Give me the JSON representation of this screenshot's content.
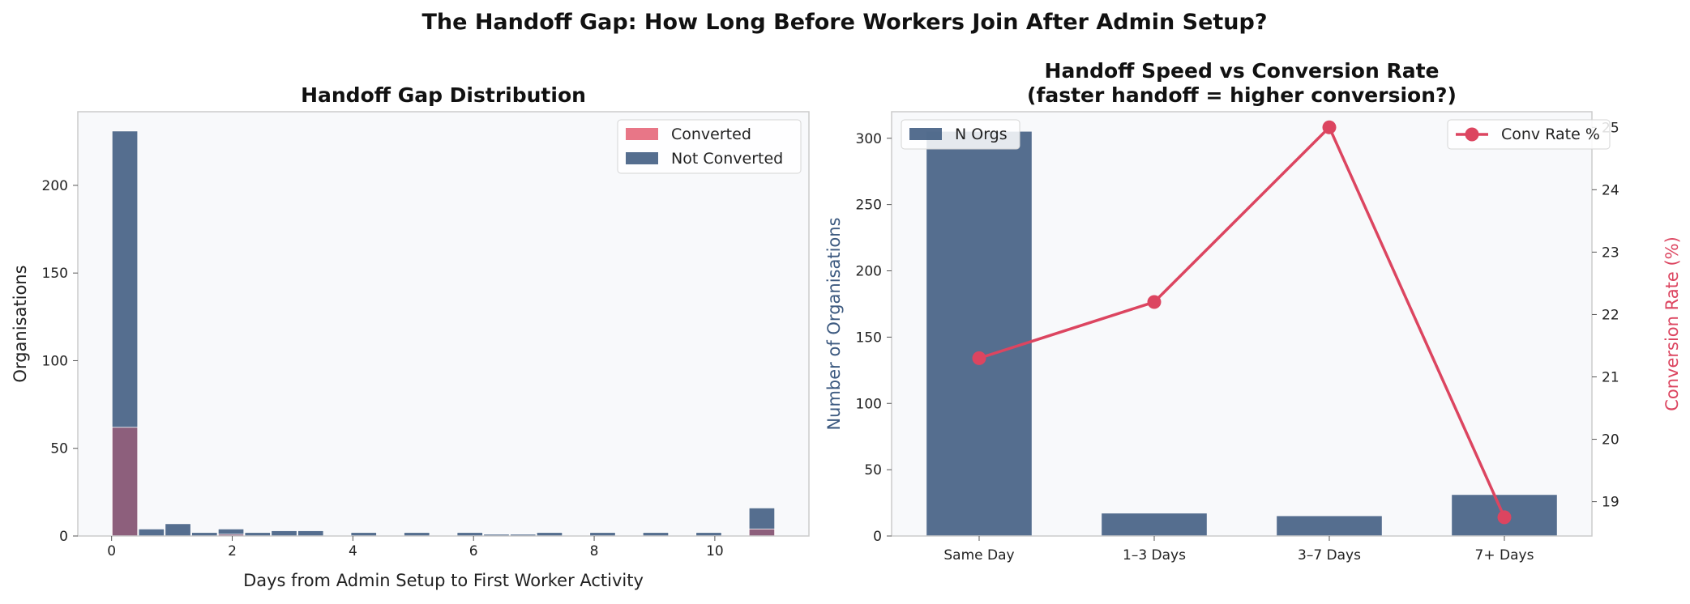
{
  "suptitle": "The Handoff Gap: How Long Before Workers Join After Admin Setup?",
  "colors": {
    "converted": "#e0485f",
    "not_converted": "#3d5a80",
    "line": "#dc4560",
    "axes_bg": "#f8f9fb",
    "spine": "#cccccc"
  },
  "chart_data": [
    {
      "type": "bar",
      "subtype": "histogram-overlay",
      "title": "Handoff Gap Distribution",
      "xlabel": "Days from Admin Setup to First Worker Activity",
      "ylabel": "Organisations",
      "xlim": [
        -0.56,
        11.56
      ],
      "ylim": [
        0,
        242
      ],
      "xticks": [
        0,
        2,
        4,
        6,
        8,
        10
      ],
      "yticks": [
        0,
        50,
        100,
        150,
        200
      ],
      "grid": false,
      "legend_position": "top-right",
      "bin_edges": [
        0,
        0.44,
        0.88,
        1.32,
        1.76,
        2.2,
        2.64,
        3.08,
        3.52,
        3.96,
        4.4,
        4.84,
        5.28,
        5.72,
        6.16,
        6.6,
        7.04,
        7.48,
        7.92,
        8.36,
        8.8,
        9.24,
        9.68,
        10.12,
        10.56,
        11.0
      ],
      "series": [
        {
          "name": "Converted",
          "values": [
            62,
            0,
            0,
            0,
            1,
            0,
            0,
            0,
            0,
            0,
            0,
            0,
            0,
            0,
            0,
            0,
            0,
            0,
            0,
            0,
            0,
            0,
            0,
            0,
            4
          ]
        },
        {
          "name": "Not Converted",
          "values": [
            231,
            4,
            7,
            2,
            4,
            2,
            3,
            3,
            0,
            2,
            0,
            2,
            0,
            2,
            1,
            1,
            2,
            0,
            2,
            0,
            2,
            0,
            2,
            0,
            16
          ]
        }
      ]
    },
    {
      "type": "bar",
      "subtype": "bar-with-line-secondary-axis",
      "title": "Handoff Speed vs Conversion Rate\n(faster handoff = higher conversion?)",
      "categories": [
        "Same Day",
        "1–3 Days",
        "3–7 Days",
        "7+ Days"
      ],
      "ylabel": "Number of Organisations",
      "y2label": "Conversion Rate (%)",
      "ylim": [
        0,
        320
      ],
      "y2lim": [
        18.45,
        25.25
      ],
      "yticks": [
        0,
        50,
        100,
        150,
        200,
        250,
        300
      ],
      "y2ticks": [
        19,
        20,
        21,
        22,
        23,
        24,
        25
      ],
      "grid": false,
      "series": [
        {
          "name": "N Orgs",
          "axis": "left",
          "kind": "bar",
          "values": [
            305,
            17,
            15,
            31
          ],
          "legend_position": "top-left"
        },
        {
          "name": "Conv Rate %",
          "axis": "right",
          "kind": "line",
          "values": [
            21.3,
            22.2,
            25.0,
            18.75
          ],
          "legend_position": "top-right"
        }
      ]
    }
  ]
}
